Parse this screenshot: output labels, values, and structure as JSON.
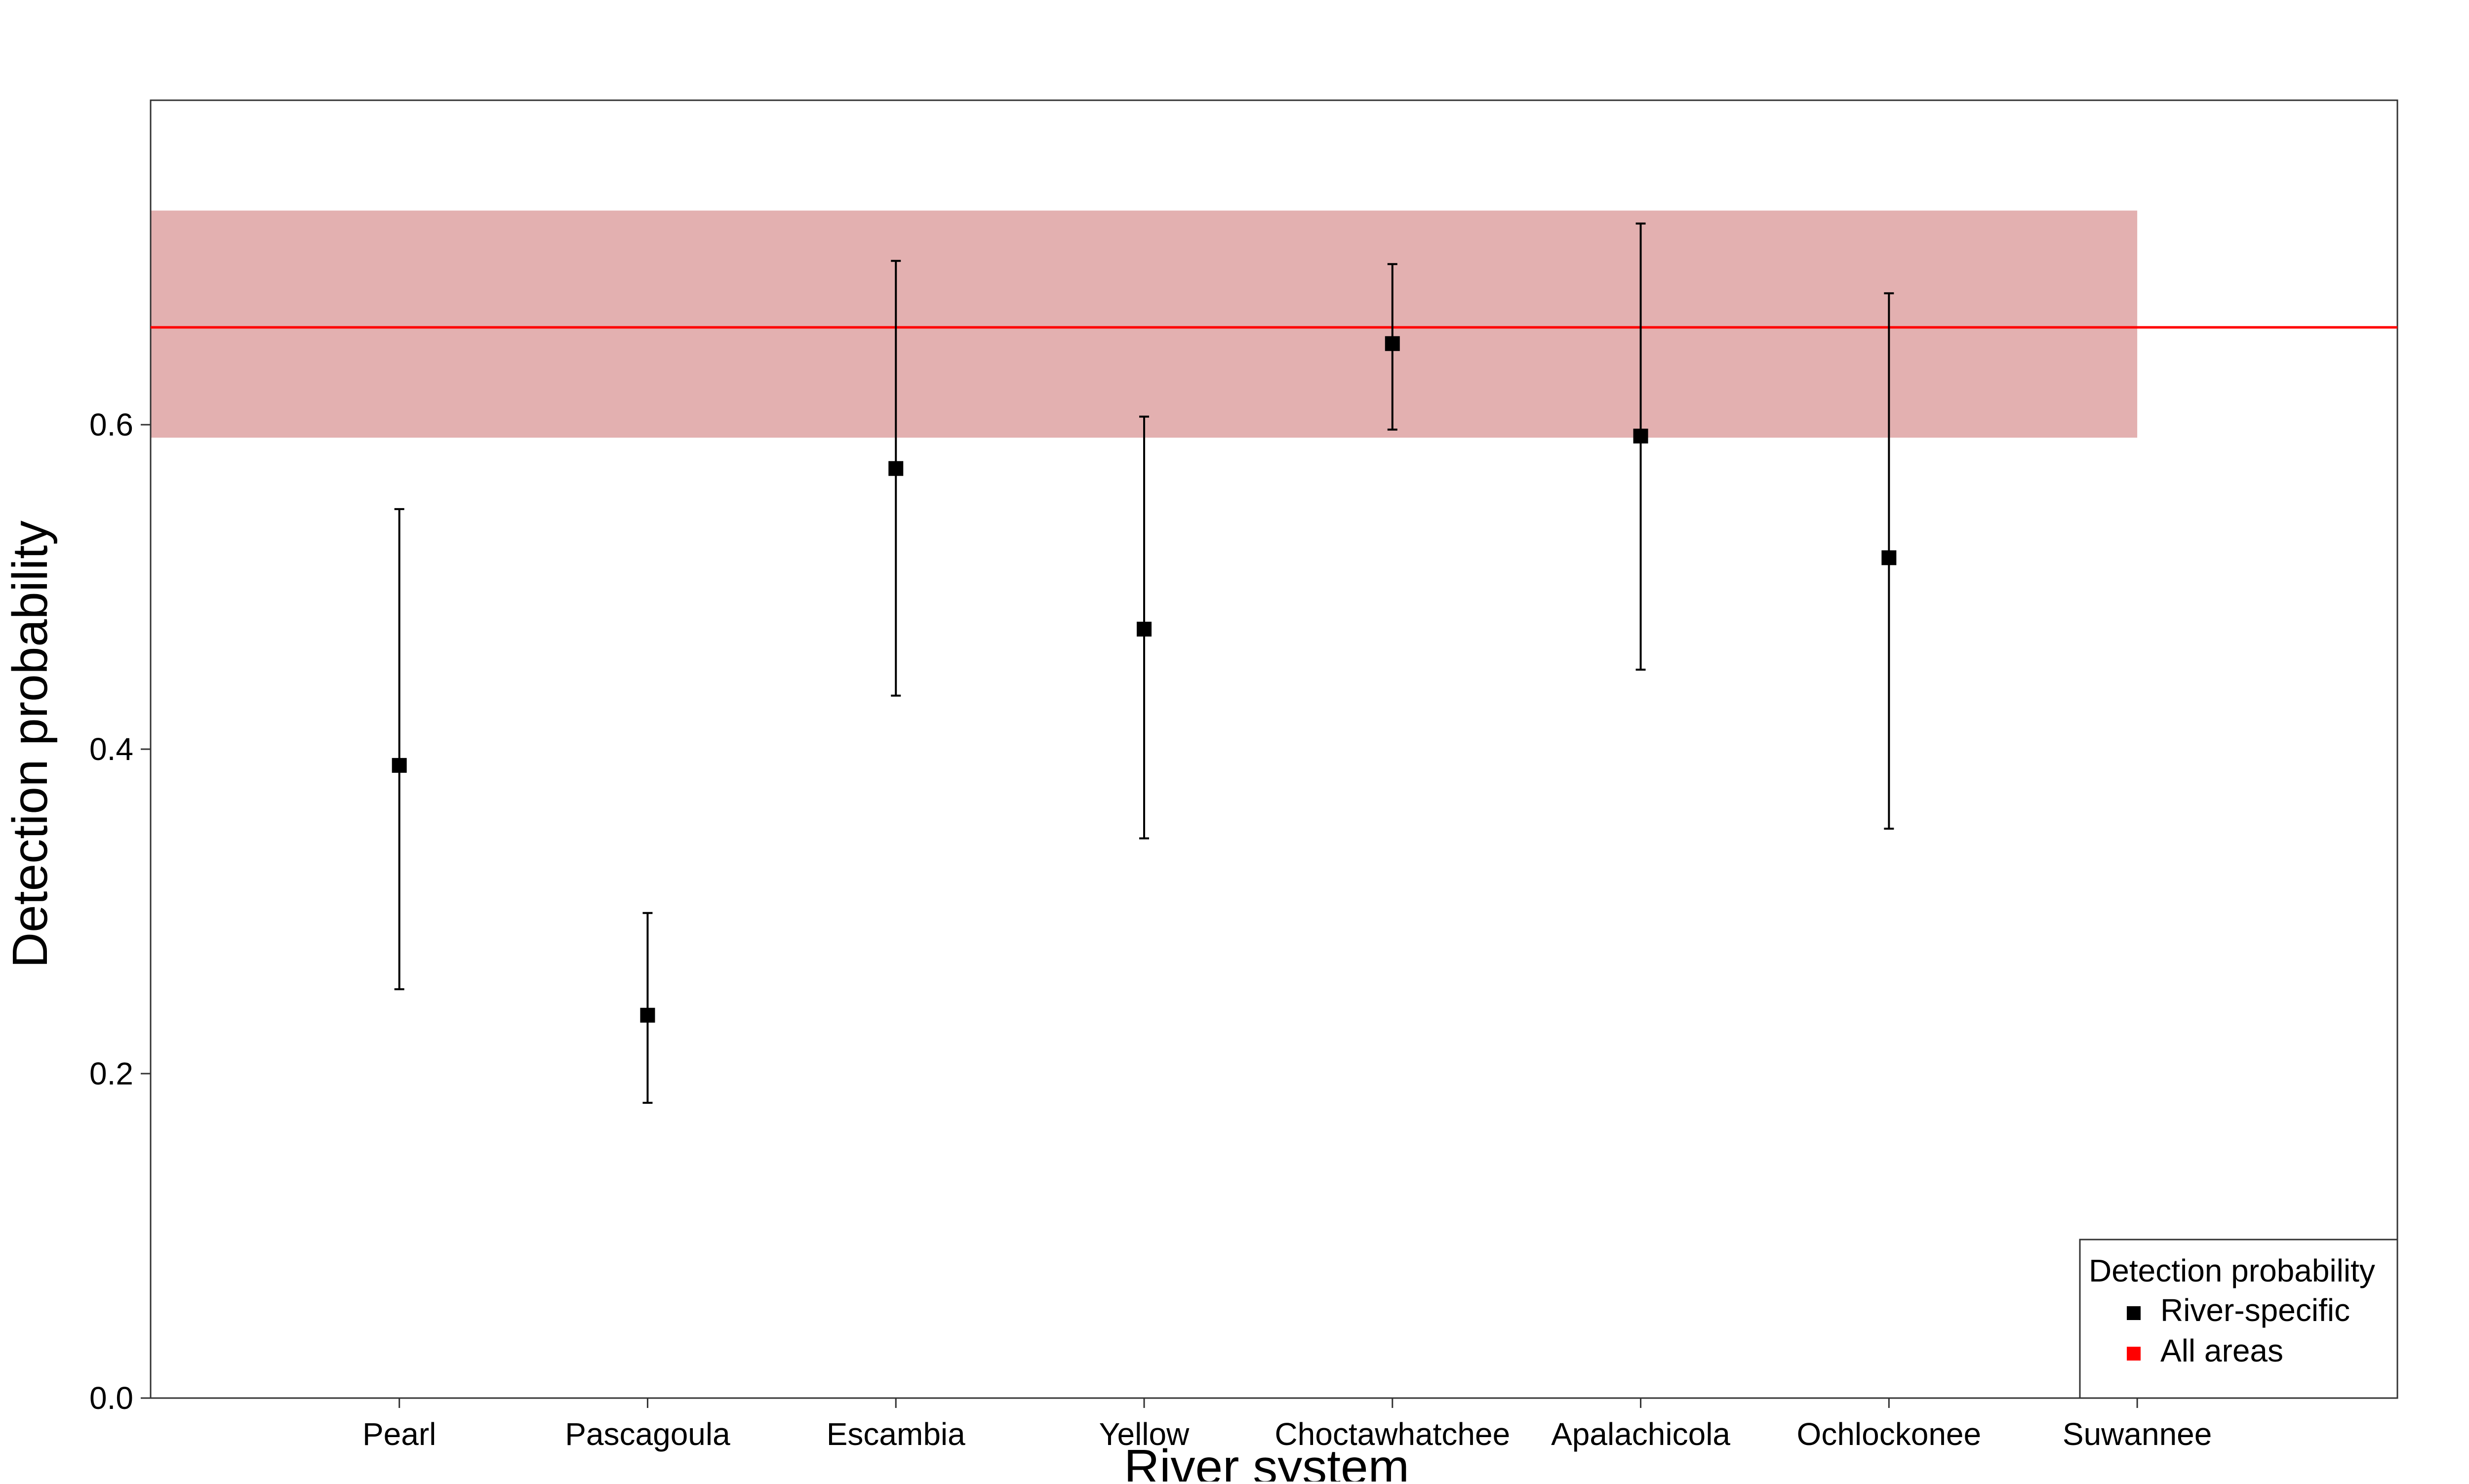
{
  "chart_data": {
    "type": "scatter",
    "title": "",
    "xlabel": "River system",
    "ylabel": "Detection probability",
    "ylim": [
      0.0,
      0.8
    ],
    "yticks": [
      "0.0",
      "0.2",
      "0.4",
      "0.6"
    ],
    "ytick_values": [
      0.0,
      0.2,
      0.4,
      0.6
    ],
    "categories": [
      "Pearl",
      "Pascagoula",
      "Escambia",
      "Yellow",
      "Choctawhatchee",
      "Apalachicola",
      "Ochlockonee",
      "Suwannee"
    ],
    "grid": false,
    "series": [
      {
        "name": "River-specific",
        "color": "#000000",
        "marker": "square",
        "points": [
          {
            "category": "Pearl",
            "y": 0.39,
            "lower": 0.252,
            "upper": 0.548
          },
          {
            "category": "Pascagoula",
            "y": 0.236,
            "lower": 0.182,
            "upper": 0.299
          },
          {
            "category": "Escambia",
            "y": 0.573,
            "lower": 0.433,
            "upper": 0.701
          },
          {
            "category": "Yellow",
            "y": 0.474,
            "lower": 0.345,
            "upper": 0.605
          },
          {
            "category": "Choctawhatchee",
            "y": 0.65,
            "lower": 0.597,
            "upper": 0.699
          },
          {
            "category": "Apalachicola",
            "y": 0.593,
            "lower": 0.449,
            "upper": 0.724
          },
          {
            "category": "Ochlockonee",
            "y": 0.518,
            "lower": 0.351,
            "upper": 0.681
          }
        ]
      },
      {
        "name": "All areas",
        "color": "#ff0000",
        "band_color": "#e3b0b0",
        "y": 0.66,
        "lower": 0.592,
        "upper": 0.732,
        "band_category_extent": [
          "start",
          "Suwannee"
        ]
      }
    ],
    "legend": {
      "title": "Detection probability",
      "placement": "bottom-right",
      "items": [
        {
          "label": "River-specific",
          "color": "#000000"
        },
        {
          "label": "All areas",
          "color": "#ff0000"
        }
      ]
    }
  }
}
